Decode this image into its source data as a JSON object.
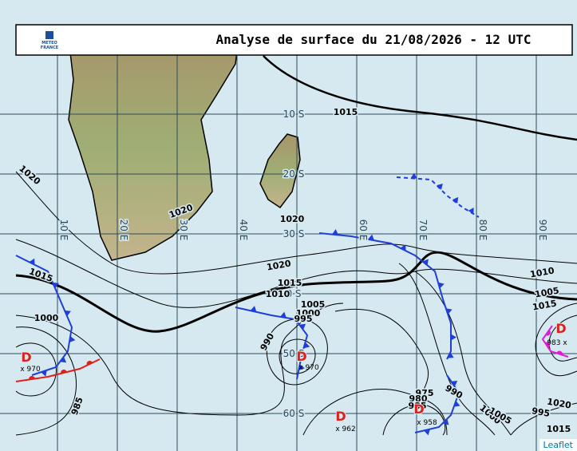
{
  "header": {
    "title": "Analyse de surface du 21/08/2026 - 12 UTC",
    "logo": [
      "METEO",
      "FRANCE"
    ]
  },
  "grid": {
    "lat_labels": [
      "10 S",
      "20 S",
      "30 S",
      "0 S",
      "50 S",
      "60 S"
    ],
    "lon_labels": [
      "10 E",
      "20 E",
      "30 E",
      "40 E",
      "60 E",
      "70 E",
      "80 E",
      "90 E"
    ]
  },
  "isobar_labels": [
    "1015",
    "1020",
    "1020",
    "1020",
    "1015",
    "1020",
    "1015",
    "1010",
    "1005",
    "1000",
    "995",
    "990",
    "1000",
    "985",
    "975",
    "980",
    "985",
    "990",
    "1000",
    "1005",
    "995",
    "1020",
    "1015",
    "1010",
    "1005",
    "1015"
  ],
  "lows": [
    {
      "symbol": "D",
      "label": "x 970"
    },
    {
      "symbol": "D",
      "label": "x 970"
    },
    {
      "symbol": "D",
      "label": "x 962"
    },
    {
      "symbol": "D",
      "label": "x 958"
    },
    {
      "symbol": "D",
      "label": "983 x"
    }
  ],
  "attribution": "Leaflet"
}
